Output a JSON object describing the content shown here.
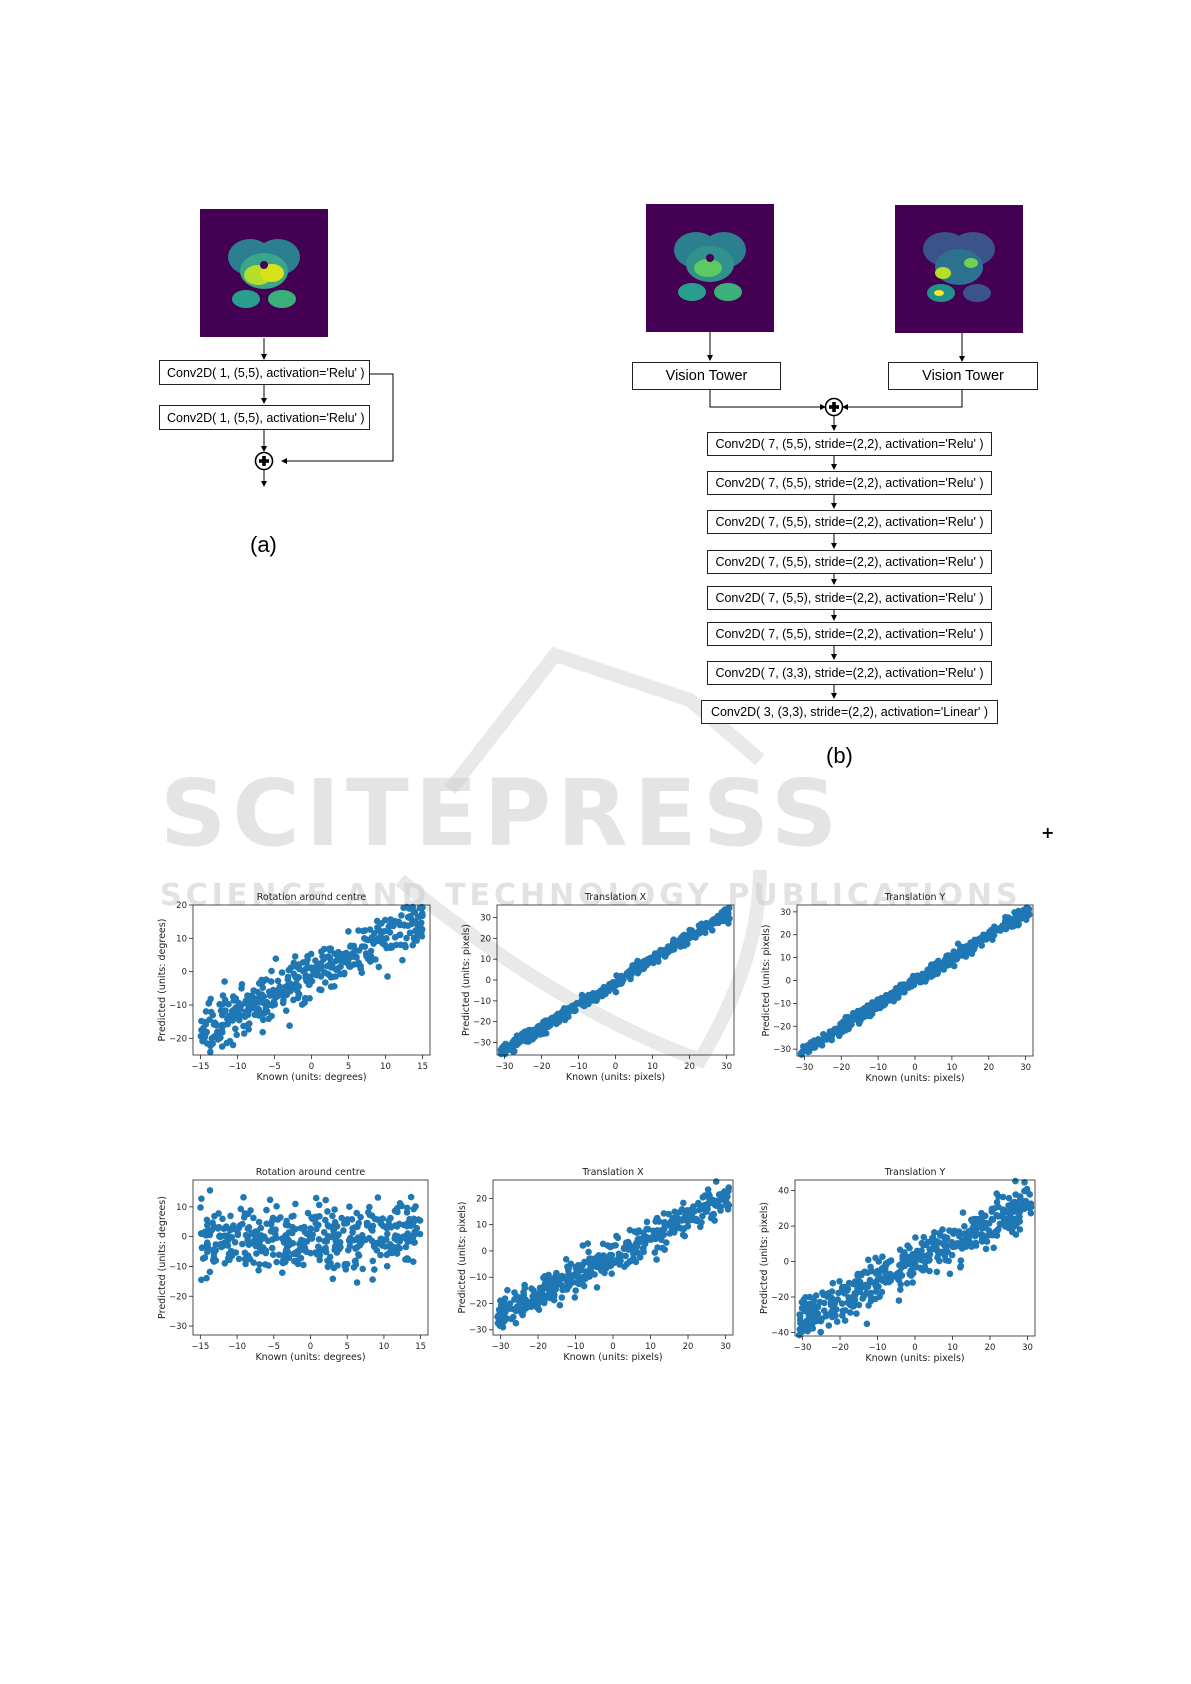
{
  "fig_a": {
    "boxes": [
      "Conv2D( 1, (5,5), activation='Relu' )",
      "Conv2D( 1, (5,5), activation='Relu' )"
    ],
    "caption": "(a)"
  },
  "fig_b": {
    "towers": [
      "Vision Tower",
      "Vision Tower"
    ],
    "boxes": [
      "Conv2D( 7, (5,5), stride=(2,2), activation='Relu' )",
      "Conv2D( 7, (5,5), stride=(2,2), activation='Relu' )",
      "Conv2D( 7, (5,5), stride=(2,2), activation='Relu' )",
      "Conv2D( 7, (5,5), stride=(2,2), activation='Relu' )",
      "Conv2D( 7, (5,5), stride=(2,2), activation='Relu' )",
      "Conv2D( 7, (5,5), stride=(2,2), activation='Relu' )",
      "Conv2D( 7, (3,3), stride=(2,2), activation='Relu' )",
      "Conv2D( 3, (3,3), stride=(2,2), activation='Linear' )"
    ],
    "caption": "(b)"
  },
  "watermark": {
    "line1": "SCITEPRESS",
    "line2": "SCIENCE AND TECHNOLOGY PUBLICATIONS"
  },
  "colors": {
    "point": "#1f77b4",
    "brain_bg": "#440154"
  },
  "chart_data": [
    {
      "type": "scatter",
      "title": "Rotation around centre",
      "xlabel": "Known (units: degrees)",
      "ylabel": "Predicted (units: degrees)",
      "xlim": [
        -16,
        16
      ],
      "ylim": [
        -25,
        20
      ],
      "xticks": [
        -15,
        -10,
        -5,
        0,
        5,
        10,
        15
      ],
      "yticks": [
        -20,
        -10,
        0,
        10,
        20
      ],
      "relation": {
        "slope": 1.15,
        "intercept": -1,
        "noise": 3.5
      },
      "n_points": 420
    },
    {
      "type": "scatter",
      "title": "Translation X",
      "xlabel": "Known (units: pixels)",
      "ylabel": "Predicted (units: pixels)",
      "xlim": [
        -32,
        32
      ],
      "ylim": [
        -36,
        36
      ],
      "xticks": [
        -30,
        -20,
        -10,
        0,
        10,
        20,
        30
      ],
      "yticks": [
        -30,
        -20,
        -10,
        0,
        10,
        20,
        30
      ],
      "relation": {
        "slope": 1.1,
        "intercept": -1,
        "noise": 1.5
      },
      "n_points": 460
    },
    {
      "type": "scatter",
      "title": "Translation Y",
      "xlabel": "Known (units: pixels)",
      "ylabel": "Predicted (units: pixels)",
      "xlim": [
        -32,
        32
      ],
      "ylim": [
        -33,
        33
      ],
      "xticks": [
        -30,
        -20,
        -10,
        0,
        10,
        20,
        30
      ],
      "yticks": [
        -30,
        -20,
        -10,
        0,
        10,
        20,
        30
      ],
      "relation": {
        "slope": 1.0,
        "intercept": -0.5,
        "noise": 1.4
      },
      "n_points": 460
    },
    {
      "type": "scatter",
      "title": "Rotation around centre",
      "xlabel": "Known (units: degrees)",
      "ylabel": "Predicted (units: degrees)",
      "xlim": [
        -16,
        16
      ],
      "ylim": [
        -33,
        19
      ],
      "xticks": [
        -15,
        -10,
        -5,
        0,
        5,
        10,
        15
      ],
      "yticks": [
        -30,
        -20,
        -10,
        0,
        10
      ],
      "relation": {
        "slope": 0.0,
        "intercept": 0,
        "noise": 6
      },
      "n_points": 420
    },
    {
      "type": "scatter",
      "title": "Translation X",
      "xlabel": "Known (units: pixels)",
      "ylabel": "Predicted (units: pixels)",
      "xlim": [
        -32,
        32
      ],
      "ylim": [
        -32,
        27
      ],
      "xticks": [
        -30,
        -20,
        -10,
        0,
        10,
        20,
        30
      ],
      "yticks": [
        -30,
        -20,
        -10,
        0,
        10,
        20
      ],
      "relation": {
        "slope": 0.75,
        "intercept": -2,
        "noise": 3
      },
      "n_points": 460
    },
    {
      "type": "scatter",
      "title": "Translation Y",
      "xlabel": "Known (units: pixels)",
      "ylabel": "Predicted (units: pixels)",
      "xlim": [
        -32,
        32
      ],
      "ylim": [
        -42,
        46
      ],
      "xticks": [
        -30,
        -20,
        -10,
        0,
        10,
        20,
        30
      ],
      "yticks": [
        -40,
        -20,
        0,
        20,
        40
      ],
      "relation": {
        "slope": 1.05,
        "intercept": 0,
        "noise": 6
      },
      "n_points": 460
    }
  ]
}
